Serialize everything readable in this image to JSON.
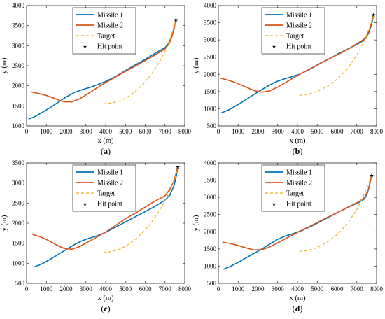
{
  "legend": {
    "missile1": "Missile 1",
    "missile2": "Missile 2",
    "target": "Target",
    "hit": "Hit point"
  },
  "colors": {
    "missile1": "#0072BD",
    "missile2": "#D95319",
    "target": "#EDB120",
    "axis": "#262626",
    "hit": "#000000"
  },
  "chart_data": [
    {
      "type": "line",
      "panel": "(a)",
      "panel_letter": "a",
      "xlabel": "x (m)",
      "ylabel": "y (m)",
      "xlim": [
        0,
        8000
      ],
      "ylim": [
        1000,
        4000
      ],
      "xticks": [
        0,
        1000,
        2000,
        3000,
        4000,
        5000,
        6000,
        7000,
        8000
      ],
      "yticks": [
        1000,
        1500,
        2000,
        2500,
        3000,
        3500,
        4000
      ],
      "grid": false,
      "legend_position": "top-center",
      "series": [
        {
          "name": "Missile 1",
          "style": "solid",
          "x": [
            100,
            400,
            800,
            1200,
            1600,
            2000,
            2400,
            2800,
            3200,
            3600,
            4000,
            4500,
            5000,
            5500,
            6000,
            6500,
            7000,
            7200,
            7350,
            7450,
            7550
          ],
          "y": [
            1170,
            1230,
            1340,
            1460,
            1590,
            1720,
            1830,
            1900,
            1960,
            2030,
            2110,
            2230,
            2380,
            2520,
            2660,
            2810,
            2950,
            3070,
            3250,
            3420,
            3650
          ]
        },
        {
          "name": "Missile 2",
          "style": "solid",
          "x": [
            200,
            600,
            1000,
            1500,
            1900,
            2300,
            2700,
            3100,
            3500,
            4000,
            4500,
            5000,
            5500,
            6000,
            6500,
            7000,
            7200,
            7350,
            7450,
            7550
          ],
          "y": [
            1850,
            1810,
            1760,
            1670,
            1600,
            1600,
            1680,
            1800,
            1930,
            2080,
            2220,
            2360,
            2490,
            2630,
            2770,
            2920,
            3040,
            3220,
            3400,
            3650
          ]
        },
        {
          "name": "Target",
          "style": "dashed",
          "x": [
            3900,
            4300,
            4700,
            5100,
            5500,
            5900,
            6300,
            6700,
            7000,
            7300,
            7550
          ],
          "y": [
            1550,
            1570,
            1620,
            1720,
            1860,
            2040,
            2280,
            2580,
            2860,
            3220,
            3650
          ]
        }
      ],
      "hit_point": {
        "x": 7550,
        "y": 3650
      }
    },
    {
      "type": "line",
      "panel": "(b)",
      "panel_letter": "b",
      "xlabel": "x (m)",
      "ylabel": "y (m)",
      "xlim": [
        0,
        8000
      ],
      "ylim": [
        500,
        4000
      ],
      "xticks": [
        0,
        1000,
        2000,
        3000,
        4000,
        5000,
        6000,
        7000,
        8000
      ],
      "yticks": [
        500,
        1000,
        1500,
        2000,
        2500,
        3000,
        3500,
        4000
      ],
      "grid": false,
      "legend_position": "top-center",
      "series": [
        {
          "name": "Missile 1",
          "style": "solid",
          "x": [
            150,
            500,
            900,
            1300,
            1700,
            2100,
            2500,
            2900,
            3300,
            3700,
            4100,
            4600,
            5100,
            5600,
            6100,
            6600,
            7100,
            7400,
            7600,
            7750,
            7850
          ],
          "y": [
            880,
            960,
            1090,
            1230,
            1380,
            1520,
            1660,
            1780,
            1860,
            1930,
            2000,
            2140,
            2300,
            2450,
            2610,
            2750,
            2900,
            3010,
            3200,
            3450,
            3740
          ]
        },
        {
          "name": "Missile 2",
          "style": "solid",
          "x": [
            100,
            500,
            900,
            1400,
            1800,
            2200,
            2600,
            3000,
            3400,
            3800,
            4200,
            4700,
            5200,
            5700,
            6200,
            6700,
            7200,
            7450,
            7650,
            7850
          ],
          "y": [
            1890,
            1830,
            1750,
            1630,
            1530,
            1480,
            1520,
            1630,
            1760,
            1900,
            2030,
            2180,
            2340,
            2480,
            2620,
            2780,
            2960,
            3060,
            3300,
            3740
          ]
        },
        {
          "name": "Target",
          "style": "dashed",
          "x": [
            4100,
            4500,
            5000,
            5500,
            6000,
            6500,
            7000,
            7400,
            7650,
            7850
          ],
          "y": [
            1390,
            1420,
            1500,
            1650,
            1850,
            2140,
            2560,
            3000,
            3370,
            3740
          ]
        }
      ],
      "hit_point": {
        "x": 7850,
        "y": 3740
      }
    },
    {
      "type": "line",
      "panel": "(c)",
      "panel_letter": "c",
      "xlabel": "x (m)",
      "ylabel": "y (m)",
      "xlim": [
        0,
        8000
      ],
      "ylim": [
        500,
        3500
      ],
      "xticks": [
        0,
        1000,
        2000,
        3000,
        4000,
        5000,
        6000,
        7000,
        8000
      ],
      "yticks": [
        500,
        1000,
        1500,
        2000,
        2500,
        3000,
        3500
      ],
      "grid": false,
      "legend_position": "top-center",
      "series": [
        {
          "name": "Missile 1",
          "style": "solid",
          "x": [
            400,
            800,
            1200,
            1600,
            2000,
            2400,
            2800,
            3200,
            3600,
            4000,
            4500,
            5000,
            5500,
            6000,
            6500,
            7000,
            7250,
            7450,
            7550,
            7650
          ],
          "y": [
            910,
            990,
            1100,
            1220,
            1340,
            1460,
            1560,
            1630,
            1690,
            1770,
            1900,
            2030,
            2160,
            2290,
            2420,
            2570,
            2700,
            2930,
            3120,
            3400
          ]
        },
        {
          "name": "Missile 2",
          "style": "solid",
          "x": [
            300,
            700,
            1100,
            1500,
            1900,
            2300,
            2700,
            3100,
            3500,
            4000,
            4500,
            5000,
            5500,
            6000,
            6500,
            7000,
            7250,
            7450,
            7650
          ],
          "y": [
            1720,
            1660,
            1570,
            1460,
            1370,
            1350,
            1420,
            1530,
            1640,
            1780,
            1940,
            2110,
            2250,
            2400,
            2550,
            2680,
            2850,
            3050,
            3400
          ]
        },
        {
          "name": "Target",
          "style": "dashed",
          "x": [
            3900,
            4300,
            4700,
            5100,
            5500,
            5900,
            6300,
            6700,
            7000,
            7300,
            7500,
            7650
          ],
          "y": [
            1270,
            1290,
            1350,
            1450,
            1600,
            1780,
            2010,
            2310,
            2550,
            2860,
            3110,
            3400
          ]
        }
      ],
      "hit_point": {
        "x": 7650,
        "y": 3400
      }
    },
    {
      "type": "line",
      "panel": "(d)",
      "panel_letter": "d",
      "xlabel": "x (m)",
      "ylabel": "y (m)",
      "xlim": [
        0,
        8000
      ],
      "ylim": [
        500,
        4000
      ],
      "xticks": [
        0,
        1000,
        2000,
        3000,
        4000,
        5000,
        6000,
        7000,
        8000
      ],
      "yticks": [
        500,
        1000,
        1500,
        2000,
        2500,
        3000,
        3500,
        4000
      ],
      "grid": false,
      "legend_position": "top-center",
      "series": [
        {
          "name": "Missile 1",
          "style": "solid",
          "x": [
            250,
            600,
            1000,
            1400,
            1800,
            2200,
            2600,
            3000,
            3400,
            3800,
            4200,
            4700,
            5200,
            5700,
            6200,
            6700,
            7100,
            7400,
            7550,
            7650,
            7750
          ],
          "y": [
            910,
            990,
            1110,
            1240,
            1370,
            1500,
            1640,
            1780,
            1880,
            1950,
            2030,
            2160,
            2310,
            2460,
            2610,
            2750,
            2850,
            2960,
            3150,
            3380,
            3640
          ]
        },
        {
          "name": "Missile 2",
          "style": "solid",
          "x": [
            200,
            600,
            1000,
            1400,
            1800,
            2200,
            2600,
            3000,
            3400,
            3800,
            4200,
            4700,
            5200,
            5700,
            6200,
            6700,
            7100,
            7400,
            7600,
            7750
          ],
          "y": [
            1700,
            1660,
            1600,
            1530,
            1470,
            1480,
            1560,
            1680,
            1800,
            1920,
            2040,
            2180,
            2330,
            2470,
            2610,
            2760,
            2870,
            3000,
            3250,
            3640
          ]
        },
        {
          "name": "Target",
          "style": "dashed",
          "x": [
            4100,
            4500,
            5000,
            5500,
            6000,
            6500,
            7000,
            7300,
            7550,
            7750
          ],
          "y": [
            1430,
            1450,
            1540,
            1700,
            1920,
            2220,
            2640,
            3000,
            3330,
            3640
          ]
        }
      ],
      "hit_point": {
        "x": 7750,
        "y": 3640
      }
    }
  ]
}
